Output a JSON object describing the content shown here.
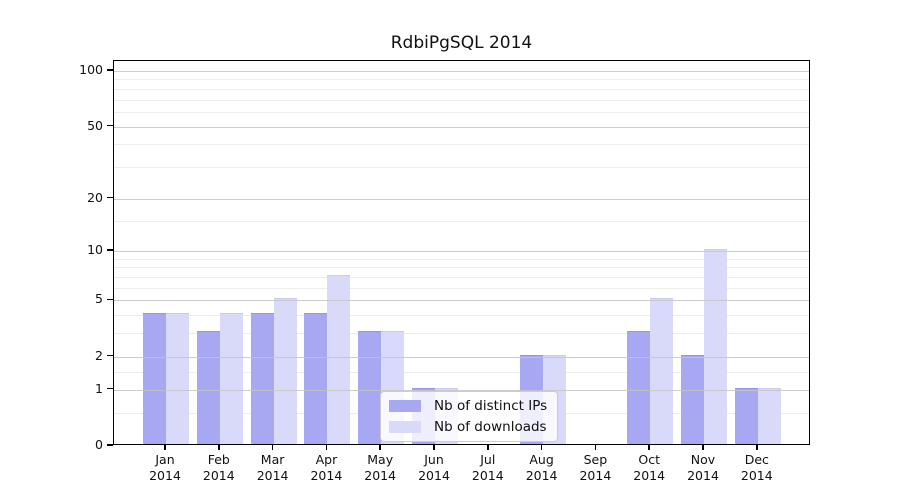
{
  "chart_title": "RdbiPgSQL 2014",
  "legend": {
    "items": [
      {
        "label": "Nb of distinct IPs",
        "swatch_color": "#a8a8f2"
      },
      {
        "label": "Nb of downloads",
        "swatch_color": "#d9d9f9"
      }
    ]
  },
  "chart_data": {
    "type": "bar",
    "title": "RdbiPgSQL 2014",
    "categories": [
      "Jan 2014",
      "Feb 2014",
      "Mar 2014",
      "Apr 2014",
      "May 2014",
      "Jun 2014",
      "Jul 2014",
      "Aug 2014",
      "Sep 2014",
      "Oct 2014",
      "Nov 2014",
      "Dec 2014"
    ],
    "x_tick_months": [
      "Jan",
      "Feb",
      "Mar",
      "Apr",
      "May",
      "Jun",
      "Jul",
      "Aug",
      "Sep",
      "Oct",
      "Nov",
      "Dec"
    ],
    "x_tick_year": "2014",
    "series": [
      {
        "name": "Nb of distinct IPs",
        "color": "#a8a8f2",
        "edge_color": "#9595ea",
        "values": [
          4,
          3,
          4,
          4,
          3,
          1,
          0,
          2,
          0,
          3,
          2,
          1
        ]
      },
      {
        "name": "Nb of downloads",
        "color": "#d9d9f9",
        "edge_color": "#c9c9f4",
        "values": [
          4,
          4,
          5,
          7,
          3,
          1,
          0,
          2,
          0,
          5,
          10,
          1
        ]
      }
    ],
    "yscale": "log1p",
    "y_major_ticks": [
      0,
      1,
      2,
      5,
      10,
      20,
      50,
      100
    ],
    "y_minor_gridlines": [
      0.5,
      1.5,
      3,
      4,
      6,
      7,
      8,
      9,
      15,
      30,
      40,
      60,
      70,
      80,
      90
    ],
    "ylim": [
      0,
      120
    ],
    "grid": true,
    "legend_position": "lower center",
    "background": "#ffffff"
  }
}
